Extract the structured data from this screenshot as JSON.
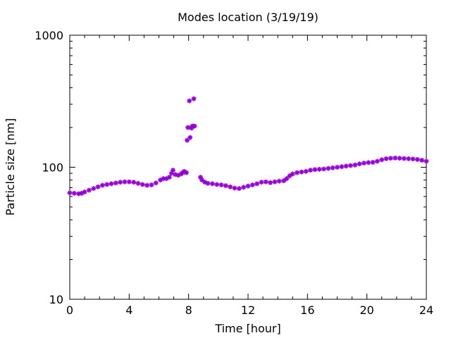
{
  "chart_data": {
    "type": "scatter",
    "title": "Modes location (3/19/19)",
    "xlabel": "Time [hour]",
    "ylabel": "Particle size [nm]",
    "xlim": [
      0,
      24
    ],
    "ylim": [
      10,
      1000
    ],
    "yscale": "log",
    "x_ticks": [
      0,
      4,
      8,
      12,
      16,
      20,
      24
    ],
    "y_ticks": [
      10,
      100,
      1000
    ],
    "x_tick_labels": [
      "0",
      "4",
      "8",
      "12",
      "16",
      "20",
      "24"
    ],
    "y_tick_labels": [
      "10",
      "100",
      "1000"
    ],
    "marker_color": "#9400d3",
    "marker": "asterisk",
    "grid": false,
    "legend": "none",
    "series": [
      {
        "points": [
          [
            0.0,
            64
          ],
          [
            0.3,
            63.5
          ],
          [
            0.6,
            63
          ],
          [
            0.8,
            63.5
          ],
          [
            1.0,
            65
          ],
          [
            1.3,
            67
          ],
          [
            1.6,
            69
          ],
          [
            1.9,
            71
          ],
          [
            2.2,
            73
          ],
          [
            2.5,
            74
          ],
          [
            2.8,
            75
          ],
          [
            3.1,
            76
          ],
          [
            3.4,
            77
          ],
          [
            3.7,
            77.5
          ],
          [
            4.0,
            77.5
          ],
          [
            4.3,
            77
          ],
          [
            4.6,
            75.5
          ],
          [
            4.9,
            74
          ],
          [
            5.2,
            73
          ],
          [
            5.5,
            73.5
          ],
          [
            5.8,
            76
          ],
          [
            6.1,
            80
          ],
          [
            6.3,
            82
          ],
          [
            6.5,
            82
          ],
          [
            6.7,
            84
          ],
          [
            6.85,
            90
          ],
          [
            6.95,
            95
          ],
          [
            7.1,
            88
          ],
          [
            7.3,
            87
          ],
          [
            7.5,
            89
          ],
          [
            7.6,
            91
          ],
          [
            7.7,
            93
          ],
          [
            7.85,
            91
          ],
          [
            7.9,
            160
          ],
          [
            7.95,
            200
          ],
          [
            8.05,
            318
          ],
          [
            8.1,
            168
          ],
          [
            8.2,
            198
          ],
          [
            8.25,
            205
          ],
          [
            8.35,
            330
          ],
          [
            8.4,
            205
          ],
          [
            8.8,
            84
          ],
          [
            8.9,
            80
          ],
          [
            9.1,
            77
          ],
          [
            9.3,
            75.5
          ],
          [
            9.6,
            75
          ],
          [
            9.9,
            74
          ],
          [
            10.2,
            73.5
          ],
          [
            10.5,
            72.5
          ],
          [
            10.8,
            71
          ],
          [
            11.1,
            69.5
          ],
          [
            11.4,
            69
          ],
          [
            11.7,
            70.5
          ],
          [
            12.0,
            72
          ],
          [
            12.3,
            73.5
          ],
          [
            12.6,
            75
          ],
          [
            12.9,
            77
          ],
          [
            13.2,
            77.5
          ],
          [
            13.5,
            76.5
          ],
          [
            13.8,
            77.5
          ],
          [
            14.1,
            78.5
          ],
          [
            14.4,
            79
          ],
          [
            14.6,
            82
          ],
          [
            14.8,
            86
          ],
          [
            15.0,
            89
          ],
          [
            15.3,
            91
          ],
          [
            15.6,
            92
          ],
          [
            15.9,
            93
          ],
          [
            16.2,
            95
          ],
          [
            16.5,
            96
          ],
          [
            16.8,
            96.5
          ],
          [
            17.1,
            97
          ],
          [
            17.4,
            98
          ],
          [
            17.7,
            99
          ],
          [
            18.0,
            100
          ],
          [
            18.3,
            101
          ],
          [
            18.6,
            102
          ],
          [
            18.9,
            103
          ],
          [
            19.2,
            104
          ],
          [
            19.5,
            106
          ],
          [
            19.8,
            107.5
          ],
          [
            20.1,
            108.5
          ],
          [
            20.4,
            109
          ],
          [
            20.7,
            111
          ],
          [
            21.0,
            114
          ],
          [
            21.3,
            116
          ],
          [
            21.6,
            117
          ],
          [
            21.9,
            117.5
          ],
          [
            22.2,
            117
          ],
          [
            22.5,
            116.5
          ],
          [
            22.8,
            116
          ],
          [
            23.1,
            115.5
          ],
          [
            23.4,
            114.5
          ],
          [
            23.7,
            113
          ],
          [
            24.0,
            111
          ]
        ]
      }
    ]
  }
}
